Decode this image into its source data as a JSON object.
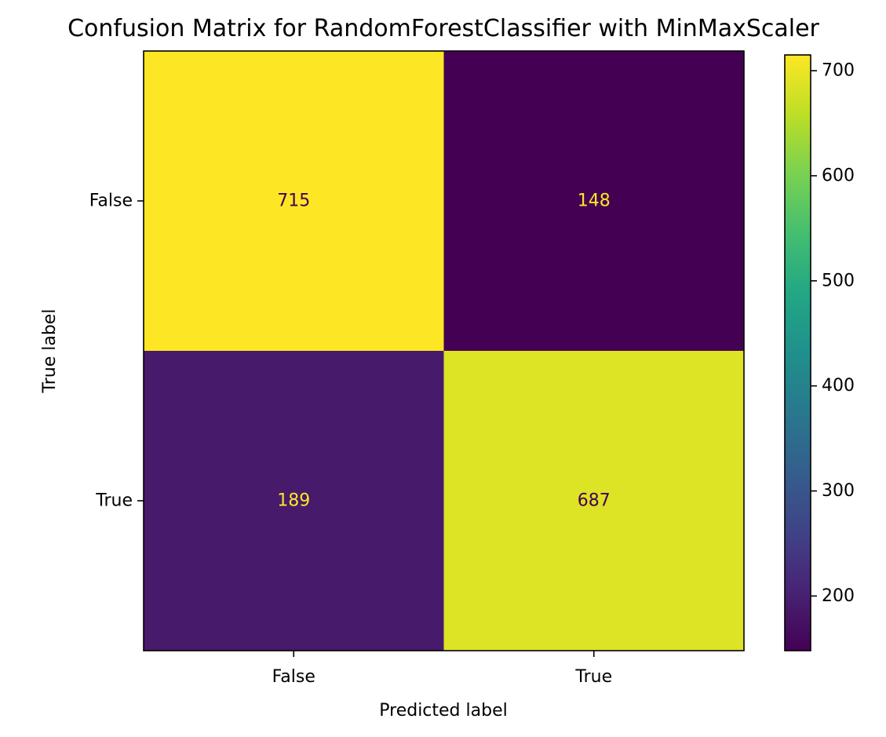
{
  "chart_data": {
    "type": "heatmap",
    "title": "Confusion Matrix for RandomForestClassifier with MinMaxScaler",
    "xlabel": "Predicted label",
    "ylabel": "True label",
    "x_categories": [
      "False",
      "True"
    ],
    "y_categories": [
      "False",
      "True"
    ],
    "matrix": [
      [
        715,
        148
      ],
      [
        189,
        687
      ]
    ],
    "colormap": "viridis",
    "colorbar": {
      "range": [
        148,
        715
      ],
      "ticks": [
        200,
        300,
        400,
        500,
        600,
        700
      ]
    },
    "label_colors": {
      "on_dark": "#fde725",
      "on_light": "#440154"
    }
  }
}
